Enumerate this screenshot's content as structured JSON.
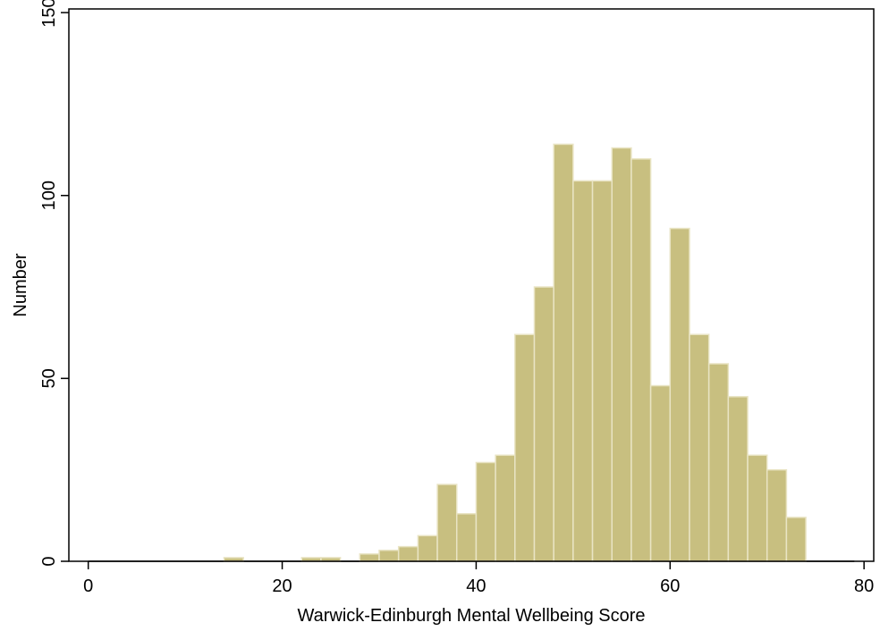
{
  "chart_data": {
    "type": "bar",
    "subtype": "histogram",
    "xlabel": "Warwick-Edinburgh Mental Wellbeing Score",
    "ylabel": "Number",
    "xlim": [
      -2,
      81
    ],
    "ylim": [
      0,
      151
    ],
    "xticks": [
      0,
      20,
      40,
      60,
      80
    ],
    "yticks": [
      0,
      50,
      100,
      150
    ],
    "grid": false,
    "bin_width": 2,
    "bins": [
      {
        "x0": 14,
        "x1": 16,
        "count": 1
      },
      {
        "x0": 16,
        "x1": 18,
        "count": 0
      },
      {
        "x0": 18,
        "x1": 20,
        "count": 0
      },
      {
        "x0": 20,
        "x1": 22,
        "count": 0
      },
      {
        "x0": 22,
        "x1": 24,
        "count": 1
      },
      {
        "x0": 24,
        "x1": 26,
        "count": 1
      },
      {
        "x0": 26,
        "x1": 28,
        "count": 0
      },
      {
        "x0": 28,
        "x1": 30,
        "count": 2
      },
      {
        "x0": 30,
        "x1": 32,
        "count": 3
      },
      {
        "x0": 32,
        "x1": 34,
        "count": 4
      },
      {
        "x0": 34,
        "x1": 36,
        "count": 7
      },
      {
        "x0": 36,
        "x1": 38,
        "count": 21
      },
      {
        "x0": 38,
        "x1": 40,
        "count": 13
      },
      {
        "x0": 40,
        "x1": 42,
        "count": 27
      },
      {
        "x0": 42,
        "x1": 44,
        "count": 29
      },
      {
        "x0": 44,
        "x1": 46,
        "count": 62
      },
      {
        "x0": 46,
        "x1": 48,
        "count": 75
      },
      {
        "x0": 48,
        "x1": 50,
        "count": 114
      },
      {
        "x0": 50,
        "x1": 52,
        "count": 104
      },
      {
        "x0": 52,
        "x1": 54,
        "count": 104
      },
      {
        "x0": 54,
        "x1": 56,
        "count": 113
      },
      {
        "x0": 56,
        "x1": 58,
        "count": 110
      },
      {
        "x0": 58,
        "x1": 60,
        "count": 48
      },
      {
        "x0": 60,
        "x1": 62,
        "count": 91
      },
      {
        "x0": 62,
        "x1": 64,
        "count": 62
      },
      {
        "x0": 64,
        "x1": 66,
        "count": 54
      },
      {
        "x0": 66,
        "x1": 68,
        "count": 45
      },
      {
        "x0": 68,
        "x1": 70,
        "count": 29
      },
      {
        "x0": 70,
        "x1": 72,
        "count": 25
      },
      {
        "x0": 72,
        "x1": 74,
        "count": 12
      }
    ],
    "colors": {
      "bar_fill": "#c8bf80",
      "bar_stroke": "#e9e4c4",
      "axis": "#000000",
      "background": "#ffffff"
    }
  }
}
